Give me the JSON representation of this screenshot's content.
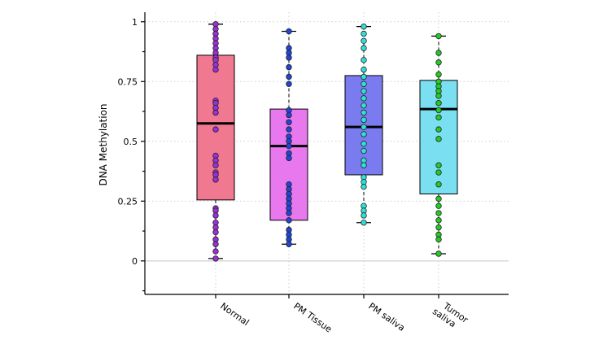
{
  "chart_data": {
    "type": "boxplot",
    "title": "",
    "xlabel": "",
    "ylabel": "DNA Methylation",
    "ylim": [
      -0.14,
      1.04
    ],
    "yticks": [
      {
        "value": 0,
        "label": "0"
      },
      {
        "value": 0.25,
        "label": "0.25"
      },
      {
        "value": 0.5,
        "label": "0.5"
      },
      {
        "value": 0.75,
        "label": "0.75"
      },
      {
        "value": 1,
        "label": "1"
      }
    ],
    "grid": true,
    "categories": [
      {
        "name": "Normal",
        "label_lines": [
          "Normal"
        ],
        "box_color": "#f07890",
        "point_color": "#9b2fd8",
        "whisker_low": 0.01,
        "q1": 0.255,
        "median": 0.575,
        "q3": 0.86,
        "whisker_high": 0.99,
        "points": [
          0.99,
          0.97,
          0.95,
          0.93,
          0.91,
          0.89,
          0.87,
          0.85,
          0.84,
          0.82,
          0.8,
          0.67,
          0.66,
          0.64,
          0.62,
          0.55,
          0.44,
          0.42,
          0.4,
          0.37,
          0.36,
          0.34,
          0.22,
          0.21,
          0.19,
          0.16,
          0.14,
          0.12,
          0.09,
          0.07,
          0.04,
          0.01
        ]
      },
      {
        "name": "PM Tissue",
        "label_lines": [
          "PM Tissue"
        ],
        "box_color": "#e878ee",
        "point_color": "#2045d8",
        "whisker_low": 0.07,
        "q1": 0.17,
        "median": 0.48,
        "q3": 0.635,
        "whisker_high": 0.96,
        "points": [
          0.96,
          0.89,
          0.87,
          0.85,
          0.81,
          0.77,
          0.74,
          0.63,
          0.61,
          0.58,
          0.55,
          0.52,
          0.5,
          0.48,
          0.45,
          0.43,
          0.32,
          0.3,
          0.28,
          0.26,
          0.24,
          0.22,
          0.2,
          0.17,
          0.13,
          0.11,
          0.09,
          0.07
        ]
      },
      {
        "name": "PM saliva",
        "label_lines": [
          "PM saliva"
        ],
        "box_color": "#7b7bf0",
        "point_color": "#2ee0d8",
        "whisker_low": 0.16,
        "q1": 0.36,
        "median": 0.56,
        "q3": 0.775,
        "whisker_high": 0.98,
        "points": [
          0.98,
          0.95,
          0.92,
          0.89,
          0.84,
          0.8,
          0.77,
          0.74,
          0.71,
          0.68,
          0.65,
          0.62,
          0.59,
          0.56,
          0.53,
          0.49,
          0.46,
          0.42,
          0.4,
          0.35,
          0.33,
          0.31,
          0.23,
          0.21,
          0.19,
          0.16
        ]
      },
      {
        "name": "Tumor saliva",
        "label_lines": [
          "Tumor",
          "saliva"
        ],
        "box_color": "#7adff0",
        "point_color": "#22cc22",
        "whisker_low": 0.03,
        "q1": 0.28,
        "median": 0.635,
        "q3": 0.755,
        "whisker_high": 0.94,
        "points": [
          0.94,
          0.87,
          0.83,
          0.78,
          0.75,
          0.73,
          0.71,
          0.69,
          0.66,
          0.63,
          0.6,
          0.55,
          0.51,
          0.4,
          0.37,
          0.32,
          0.26,
          0.23,
          0.2,
          0.17,
          0.14,
          0.11,
          0.09,
          0.03
        ]
      }
    ]
  }
}
